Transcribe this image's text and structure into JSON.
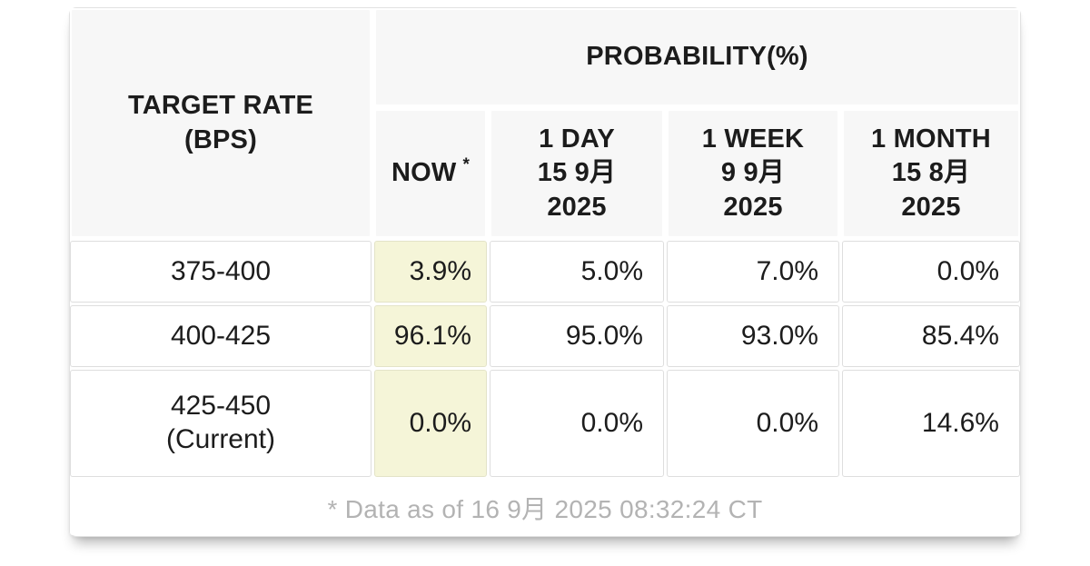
{
  "chart_data": {
    "type": "table",
    "title": "PROBABILITY(%)",
    "columns": [
      "TARGET RATE (BPS)",
      "NOW *",
      "1 DAY 15 9月 2025",
      "1 WEEK 9 9月 2025",
      "1 MONTH 15 8月 2025"
    ],
    "rows": [
      [
        "375-400",
        "3.9%",
        "5.0%",
        "7.0%",
        "0.0%"
      ],
      [
        "400-425",
        "96.1%",
        "95.0%",
        "93.0%",
        "85.4%"
      ],
      [
        "425-450 (Current)",
        "0.0%",
        "0.0%",
        "0.0%",
        "14.6%"
      ]
    ],
    "footnote": "* Data as of 16 9月 2025 08:32:24 CT",
    "highlighted_column": "NOW",
    "layout_hints": "NOW data column highlighted pale yellow; numeric cells right-aligned; header cells light gray"
  },
  "ui": {
    "header": {
      "target_rate_lines": [
        "TARGET RATE",
        "(BPS)"
      ],
      "probability": "PROBABILITY(%)"
    },
    "col_headers": [
      {
        "label": "NOW",
        "sup": "*"
      },
      {
        "lines": [
          "1 DAY",
          "15 9月",
          "2025"
        ]
      },
      {
        "lines": [
          "1 WEEK",
          "9 9月",
          "2025"
        ]
      },
      {
        "lines": [
          "1 MONTH",
          "15 8月",
          "2025"
        ]
      }
    ],
    "row_labels": [
      {
        "lines": [
          "375-400"
        ]
      },
      {
        "lines": [
          "400-425"
        ]
      },
      {
        "lines": [
          "425-450",
          "(Current)"
        ]
      }
    ],
    "footnote": "* Data as of 16 9月 2025 08:32:24 CT"
  },
  "colors": {
    "highlight_yellow": "#f5f5d8",
    "header_bg": "#f7f7f7",
    "cell_border": "#dedede",
    "text": "#1c1c1c",
    "footnote_text": "#b3b3b3"
  }
}
